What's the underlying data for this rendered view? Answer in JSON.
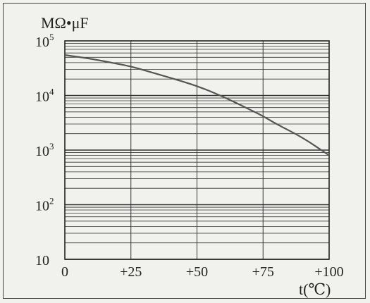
{
  "chart_data": {
    "type": "line",
    "ylabel_text": "MΩ•μF",
    "xlabel": "t(℃)",
    "x_scale": "linear",
    "y_scale": "log",
    "xlim": [
      0,
      100
    ],
    "ylim": [
      10,
      100000
    ],
    "x_ticks": [
      0,
      25,
      50,
      75,
      100
    ],
    "x_tick_labels": [
      "0",
      "+25",
      "+50",
      "+75",
      "+100"
    ],
    "y_ticks": [
      10,
      100,
      1000,
      10000,
      100000
    ],
    "y_tick_labels": [
      {
        "base": "10",
        "exp": ""
      },
      {
        "base": "10",
        "exp": "2"
      },
      {
        "base": "10",
        "exp": "3"
      },
      {
        "base": "10",
        "exp": "4"
      },
      {
        "base": "10",
        "exp": "5"
      }
    ],
    "grid": true,
    "line_color": "#555555",
    "grid_color": "#333333",
    "series": [
      {
        "x": [
          0,
          10,
          20,
          25,
          30,
          40,
          50,
          60,
          70,
          75,
          80,
          90,
          100
        ],
        "y": [
          55000,
          47000,
          38000,
          34000,
          29000,
          21000,
          15000,
          9500,
          5500,
          4200,
          3000,
          1700,
          800
        ]
      }
    ]
  }
}
